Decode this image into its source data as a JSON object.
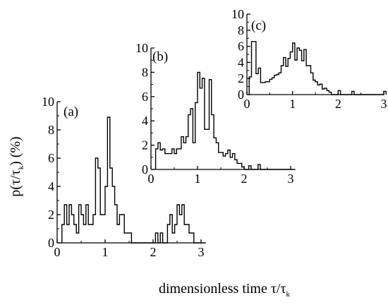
{
  "figure": {
    "ylabel_main": "p(τ/τ",
    "ylabel_sub": "k",
    "ylabel_tail": ") (%)",
    "xlabel_main": "dimensionless time τ/τ",
    "xlabel_sub": "k"
  },
  "chart_data": [
    {
      "type": "histogram",
      "panel_label": "(a)",
      "xlim": [
        0,
        3
      ],
      "ylim": [
        0,
        10
      ],
      "xticks": [
        "0",
        "1",
        "2",
        "3"
      ],
      "yticks": [
        "0",
        "2",
        "4",
        "6",
        "8",
        "10"
      ],
      "bin_width": 0.05,
      "x_start": 0.1,
      "values": [
        1.3,
        2.7,
        1.3,
        2.7,
        2.0,
        1.3,
        0.7,
        2.7,
        2.0,
        1.3,
        2.7,
        1.3,
        1.3,
        2.0,
        6.0,
        5.3,
        2.0,
        2.0,
        4.0,
        8.9,
        5.3,
        4.0,
        2.7,
        1.3,
        2.0,
        2.0,
        0.7,
        0.7,
        0.7,
        0,
        0,
        0,
        0,
        0,
        0,
        0,
        0,
        0,
        0,
        0.7,
        0,
        0.7,
        0,
        0,
        1.3,
        2.0,
        0.7,
        1.3,
        2.7,
        2.0,
        2.7,
        1.3,
        1.3,
        0.7,
        0.7,
        0,
        0,
        0,
        0,
        0
      ]
    },
    {
      "type": "histogram",
      "panel_label": "(b)",
      "xlim": [
        0,
        3
      ],
      "ylim": [
        0,
        10
      ],
      "xticks": [
        "0",
        "1",
        "2",
        "3"
      ],
      "yticks": [
        "0",
        "2",
        "4",
        "6",
        "8",
        "10"
      ],
      "bin_width": 0.05,
      "x_start": 0.1,
      "values": [
        1.7,
        2.2,
        1.6,
        1.7,
        1.3,
        1.3,
        1.3,
        1.7,
        1.3,
        1.7,
        1.7,
        2.7,
        2.2,
        2.7,
        4.5,
        5.0,
        2.2,
        5.5,
        8.0,
        6.7,
        7.5,
        3.3,
        3.3,
        7.4,
        4.5,
        2.6,
        2.2,
        1.4,
        1.4,
        1.1,
        1.3,
        1.6,
        1.0,
        1.3,
        0.8,
        0.5,
        0.5,
        0.2,
        0,
        0,
        0.3,
        0,
        0,
        0,
        0.4,
        0,
        0,
        0,
        0,
        0,
        0,
        0,
        0,
        0,
        0,
        0,
        0,
        0,
        0,
        0
      ]
    },
    {
      "type": "histogram",
      "panel_label": "(c)",
      "xlim": [
        0,
        3
      ],
      "ylim": [
        0,
        10
      ],
      "xticks": [
        "0",
        "1",
        "2",
        "3"
      ],
      "yticks": [
        "0",
        "2",
        "4",
        "6",
        "8",
        "10"
      ],
      "bin_width": 0.05,
      "x_start": 0.05,
      "values": [
        2.2,
        6.6,
        6.6,
        2.6,
        3.3,
        1.5,
        1.5,
        1.6,
        1.6,
        1.9,
        2.1,
        2.4,
        2.5,
        2.7,
        3.6,
        4.6,
        3.5,
        4.5,
        5.3,
        6.4,
        4.3,
        5.8,
        5.5,
        4.2,
        5.6,
        3.6,
        3.6,
        2.7,
        1.8,
        1.6,
        1.2,
        1.3,
        0.7,
        0.8,
        0.5,
        0.3,
        0,
        0,
        0,
        0.5,
        0,
        0,
        0,
        0,
        0,
        0.4,
        0,
        0,
        0,
        0,
        0,
        0,
        0,
        0,
        0,
        0,
        0,
        0,
        0,
        0.4
      ]
    }
  ]
}
